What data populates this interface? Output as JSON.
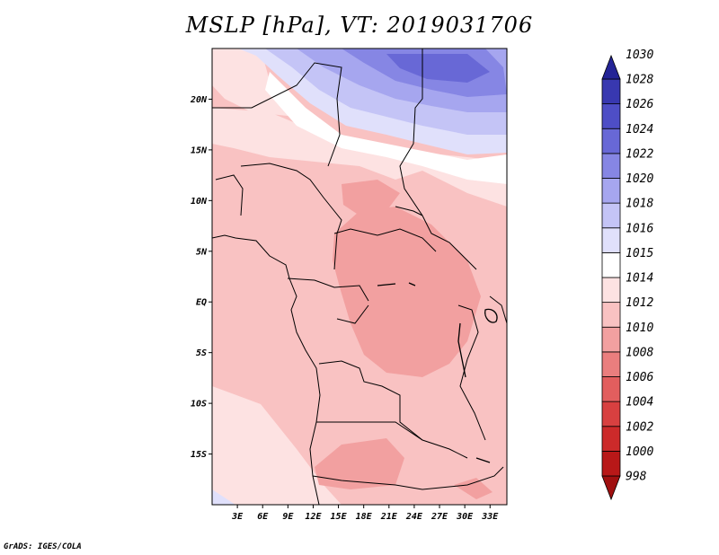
{
  "title": "MSLP [hPa], VT: 2019031706",
  "credit": "GrADS: IGES/COLA",
  "chart_data": {
    "type": "heatmap",
    "variable": "MSLP",
    "unit": "hPa",
    "valid_time": "2019031706",
    "xlim": [
      0,
      35
    ],
    "ylim": [
      -20,
      25
    ],
    "lon_ticks": [
      {
        "value": 3,
        "label": "3E"
      },
      {
        "value": 6,
        "label": "6E"
      },
      {
        "value": 9,
        "label": "9E"
      },
      {
        "value": 12,
        "label": "12E"
      },
      {
        "value": 15,
        "label": "15E"
      },
      {
        "value": 18,
        "label": "18E"
      },
      {
        "value": 21,
        "label": "21E"
      },
      {
        "value": 24,
        "label": "24E"
      },
      {
        "value": 27,
        "label": "27E"
      },
      {
        "value": 30,
        "label": "30E"
      },
      {
        "value": 33,
        "label": "33E"
      }
    ],
    "lat_ticks": [
      {
        "value": 20,
        "label": "20N"
      },
      {
        "value": 15,
        "label": "15N"
      },
      {
        "value": 10,
        "label": "10N"
      },
      {
        "value": 5,
        "label": "5N"
      },
      {
        "value": 0,
        "label": "EQ"
      },
      {
        "value": -5,
        "label": "5S"
      },
      {
        "value": -10,
        "label": "10S"
      },
      {
        "value": -15,
        "label": "15S"
      }
    ],
    "colorbar": [
      {
        "label": "998",
        "color": "#a01010"
      },
      {
        "label": "1000",
        "color": "#b81818"
      },
      {
        "label": "1002",
        "color": "#cc2a2a"
      },
      {
        "label": "1004",
        "color": "#d84040"
      },
      {
        "label": "1006",
        "color": "#e25e5e"
      },
      {
        "label": "1008",
        "color": "#ea7e7e"
      },
      {
        "label": "1010",
        "color": "#f2a0a0"
      },
      {
        "label": "1012",
        "color": "#f9c2c2"
      },
      {
        "label": "1014",
        "color": "#fde2e2"
      },
      {
        "label": "1015",
        "color": "#ffffff"
      },
      {
        "label": "1016",
        "color": "#e0e0fb"
      },
      {
        "label": "1018",
        "color": "#c4c4f6"
      },
      {
        "label": "1020",
        "color": "#a6a6ef"
      },
      {
        "label": "1022",
        "color": "#8686e4"
      },
      {
        "label": "1024",
        "color": "#6868d6"
      },
      {
        "label": "1026",
        "color": "#4e4ec6"
      },
      {
        "label": "1028",
        "color": "#3838b0"
      },
      {
        "label": "1030",
        "color": "#242496"
      }
    ]
  }
}
